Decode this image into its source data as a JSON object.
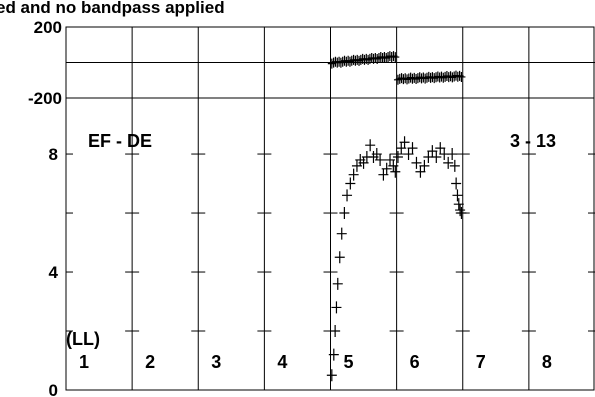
{
  "title": "ed and no bandpass applied",
  "baseline_label": "EF - DE",
  "scan_label": "3 - 13",
  "polarization_label": "(LL)",
  "panels": [
    "1",
    "2",
    "3",
    "4",
    "5",
    "6",
    "7",
    "8"
  ],
  "colors": {
    "line": "#000000",
    "background": "#ffffff"
  },
  "chart_data": [
    {
      "type": "scatter",
      "panel": "phase",
      "title": "ed and no bandpass applied",
      "ylim": [
        -200,
        200
      ],
      "y_ticks": [
        {
          "label": "200",
          "value": 200
        },
        {
          "label": "-200",
          "value": -200
        }
      ],
      "x_range": [
        0,
        8
      ],
      "series": [
        {
          "x_range": [
            4.02,
            4.98
          ],
          "y_start": -2,
          "y_end": 35
        },
        {
          "x_range": [
            5.02,
            5.98
          ],
          "y_start": -93,
          "y_end": -77
        }
      ]
    },
    {
      "type": "scatter",
      "panel": "amplitude",
      "ylim": [
        0,
        9.9
      ],
      "y_ticks": [
        {
          "label": "8",
          "value": 8
        },
        {
          "label": "4",
          "value": 4
        },
        {
          "label": "0",
          "value": 0
        }
      ],
      "x_range": [
        0,
        8
      ],
      "points": [
        [
          4.02,
          0.5
        ],
        [
          4.05,
          1.2
        ],
        [
          4.07,
          2.0
        ],
        [
          4.09,
          2.8
        ],
        [
          4.11,
          3.6
        ],
        [
          4.14,
          4.5
        ],
        [
          4.17,
          5.3
        ],
        [
          4.21,
          6.0
        ],
        [
          4.25,
          6.6
        ],
        [
          4.3,
          7.0
        ],
        [
          4.35,
          7.3
        ],
        [
          4.4,
          7.6
        ],
        [
          4.45,
          7.8
        ],
        [
          4.5,
          7.7
        ],
        [
          4.55,
          7.9
        ],
        [
          4.6,
          8.3
        ],
        [
          4.65,
          7.9
        ],
        [
          4.7,
          8.0
        ],
        [
          4.75,
          7.8
        ],
        [
          4.8,
          7.3
        ],
        [
          4.85,
          7.5
        ],
        [
          4.9,
          7.8
        ],
        [
          4.95,
          7.6
        ],
        [
          4.98,
          7.4
        ],
        [
          5.02,
          7.9
        ],
        [
          5.07,
          8.2
        ],
        [
          5.12,
          8.4
        ],
        [
          5.18,
          8.0
        ],
        [
          5.24,
          8.2
        ],
        [
          5.3,
          7.7
        ],
        [
          5.36,
          7.4
        ],
        [
          5.42,
          7.6
        ],
        [
          5.48,
          7.9
        ],
        [
          5.54,
          8.1
        ],
        [
          5.6,
          7.9
        ],
        [
          5.66,
          8.2
        ],
        [
          5.72,
          8.0
        ],
        [
          5.78,
          7.7
        ],
        [
          5.84,
          8.0
        ],
        [
          5.88,
          7.6
        ],
        [
          5.9,
          7.0
        ],
        [
          5.92,
          6.6
        ],
        [
          5.94,
          6.3
        ],
        [
          5.96,
          6.1
        ],
        [
          5.98,
          6.0
        ]
      ]
    }
  ]
}
